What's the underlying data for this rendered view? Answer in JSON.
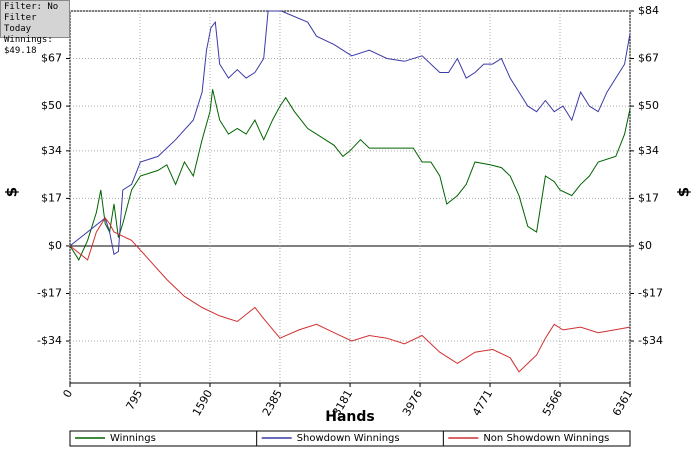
{
  "info": {
    "filter": "Filter: No Filter",
    "period": "Today",
    "winnings": "Winnings: $49.18"
  },
  "chart_data": {
    "type": "line",
    "xlabel": "Hands",
    "ylabel": "$",
    "y2label": "$",
    "xlim": [
      0,
      6361
    ],
    "xticks": [
      0,
      795,
      1590,
      2385,
      3181,
      3976,
      4771,
      5566,
      6361
    ],
    "ylim": [
      -49,
      84
    ],
    "yticks": [
      {
        "value": -34,
        "label": "-$34"
      },
      {
        "value": -17,
        "label": "-$17"
      },
      {
        "value": 0,
        "label": "$0"
      },
      {
        "value": 17,
        "label": "$17"
      },
      {
        "value": 34,
        "label": "$34"
      },
      {
        "value": 50,
        "label": "$50"
      },
      {
        "value": 67,
        "label": "$67"
      },
      {
        "value": 84,
        "label": "$84"
      }
    ],
    "y2lim": [
      -49,
      84
    ],
    "y2ticks": [
      {
        "value": -34,
        "label": "-$34"
      },
      {
        "value": -17,
        "label": "-$17"
      },
      {
        "value": 0,
        "label": "$0"
      },
      {
        "value": 17,
        "label": "$17"
      },
      {
        "value": 34,
        "label": "$34"
      },
      {
        "value": 50,
        "label": "$50"
      },
      {
        "value": 67,
        "label": "$67"
      },
      {
        "value": 84,
        "label": "$84"
      }
    ],
    "grid": true,
    "legend": "bottom",
    "series": [
      {
        "name": "Winnings",
        "color": "#006400",
        "x": [
          0,
          100,
          200,
          300,
          350,
          400,
          450,
          500,
          550,
          600,
          700,
          800,
          1000,
          1100,
          1200,
          1300,
          1400,
          1500,
          1590,
          1620,
          1700,
          1800,
          1900,
          2000,
          2100,
          2200,
          2300,
          2385,
          2450,
          2550,
          2700,
          2800,
          2900,
          3000,
          3100,
          3181,
          3300,
          3400,
          3500,
          3700,
          3900,
          4000,
          4100,
          4200,
          4280,
          4400,
          4500,
          4600,
          4771,
          4900,
          5000,
          5100,
          5200,
          5300,
          5400,
          5500,
          5566,
          5700,
          5800,
          5900,
          6000,
          6200,
          6300,
          6361
        ],
        "values": [
          0,
          -5,
          2,
          12,
          20,
          8,
          5,
          15,
          3,
          8,
          20,
          25,
          27,
          29,
          22,
          30,
          25,
          38,
          48,
          56,
          45,
          40,
          42,
          40,
          45,
          38,
          45,
          50,
          53,
          48,
          42,
          40,
          38,
          36,
          32,
          34,
          38,
          35,
          35,
          35,
          35,
          30,
          30,
          25,
          15,
          18,
          22,
          30,
          29,
          28,
          25,
          18,
          7,
          5,
          25,
          23,
          20,
          18,
          22,
          25,
          30,
          32,
          40,
          49
        ]
      },
      {
        "name": "Showdown Winnings",
        "color": "#3a3aa8",
        "x": [
          0,
          400,
          450,
          500,
          550,
          600,
          700,
          800,
          1000,
          1200,
          1400,
          1500,
          1550,
          1600,
          1650,
          1700,
          1800,
          1900,
          2000,
          2100,
          2200,
          2250,
          2400,
          2700,
          2800,
          3000,
          3200,
          3400,
          3600,
          3800,
          4000,
          4200,
          4300,
          4400,
          4500,
          4600,
          4700,
          4800,
          4900,
          5000,
          5100,
          5200,
          5300,
          5400,
          5500,
          5600,
          5700,
          5800,
          5900,
          6000,
          6100,
          6200,
          6300,
          6361
        ],
        "values": [
          0,
          10,
          5,
          -3,
          -2,
          20,
          22,
          30,
          32,
          38,
          45,
          55,
          70,
          78,
          80,
          65,
          60,
          63,
          60,
          62,
          67,
          84,
          84,
          80,
          75,
          72,
          68,
          70,
          67,
          66,
          68,
          62,
          62,
          67,
          60,
          62,
          65,
          65,
          67,
          60,
          55,
          50,
          48,
          52,
          48,
          50,
          45,
          55,
          50,
          48,
          55,
          60,
          65,
          76
        ]
      },
      {
        "name": "Non Showdown Winnings",
        "color": "#d03030",
        "x": [
          0,
          200,
          300,
          400,
          450,
          500,
          700,
          900,
          1100,
          1300,
          1500,
          1700,
          1900,
          2100,
          2200,
          2385,
          2600,
          2800,
          3000,
          3200,
          3400,
          3600,
          3800,
          4000,
          4200,
          4400,
          4600,
          4800,
          5000,
          5100,
          5200,
          5300,
          5400,
          5500,
          5600,
          5800,
          6000,
          6361
        ],
        "values": [
          0,
          -5,
          5,
          10,
          8,
          5,
          2,
          -5,
          -12,
          -18,
          -22,
          -25,
          -27,
          -22,
          -26,
          -33,
          -30,
          -28,
          -31,
          -34,
          -32,
          -33,
          -35,
          -32,
          -38,
          -42,
          -38,
          -37,
          -40,
          -45,
          -42,
          -39,
          -33,
          -28,
          -30,
          -29,
          -31,
          -29
        ]
      }
    ]
  }
}
